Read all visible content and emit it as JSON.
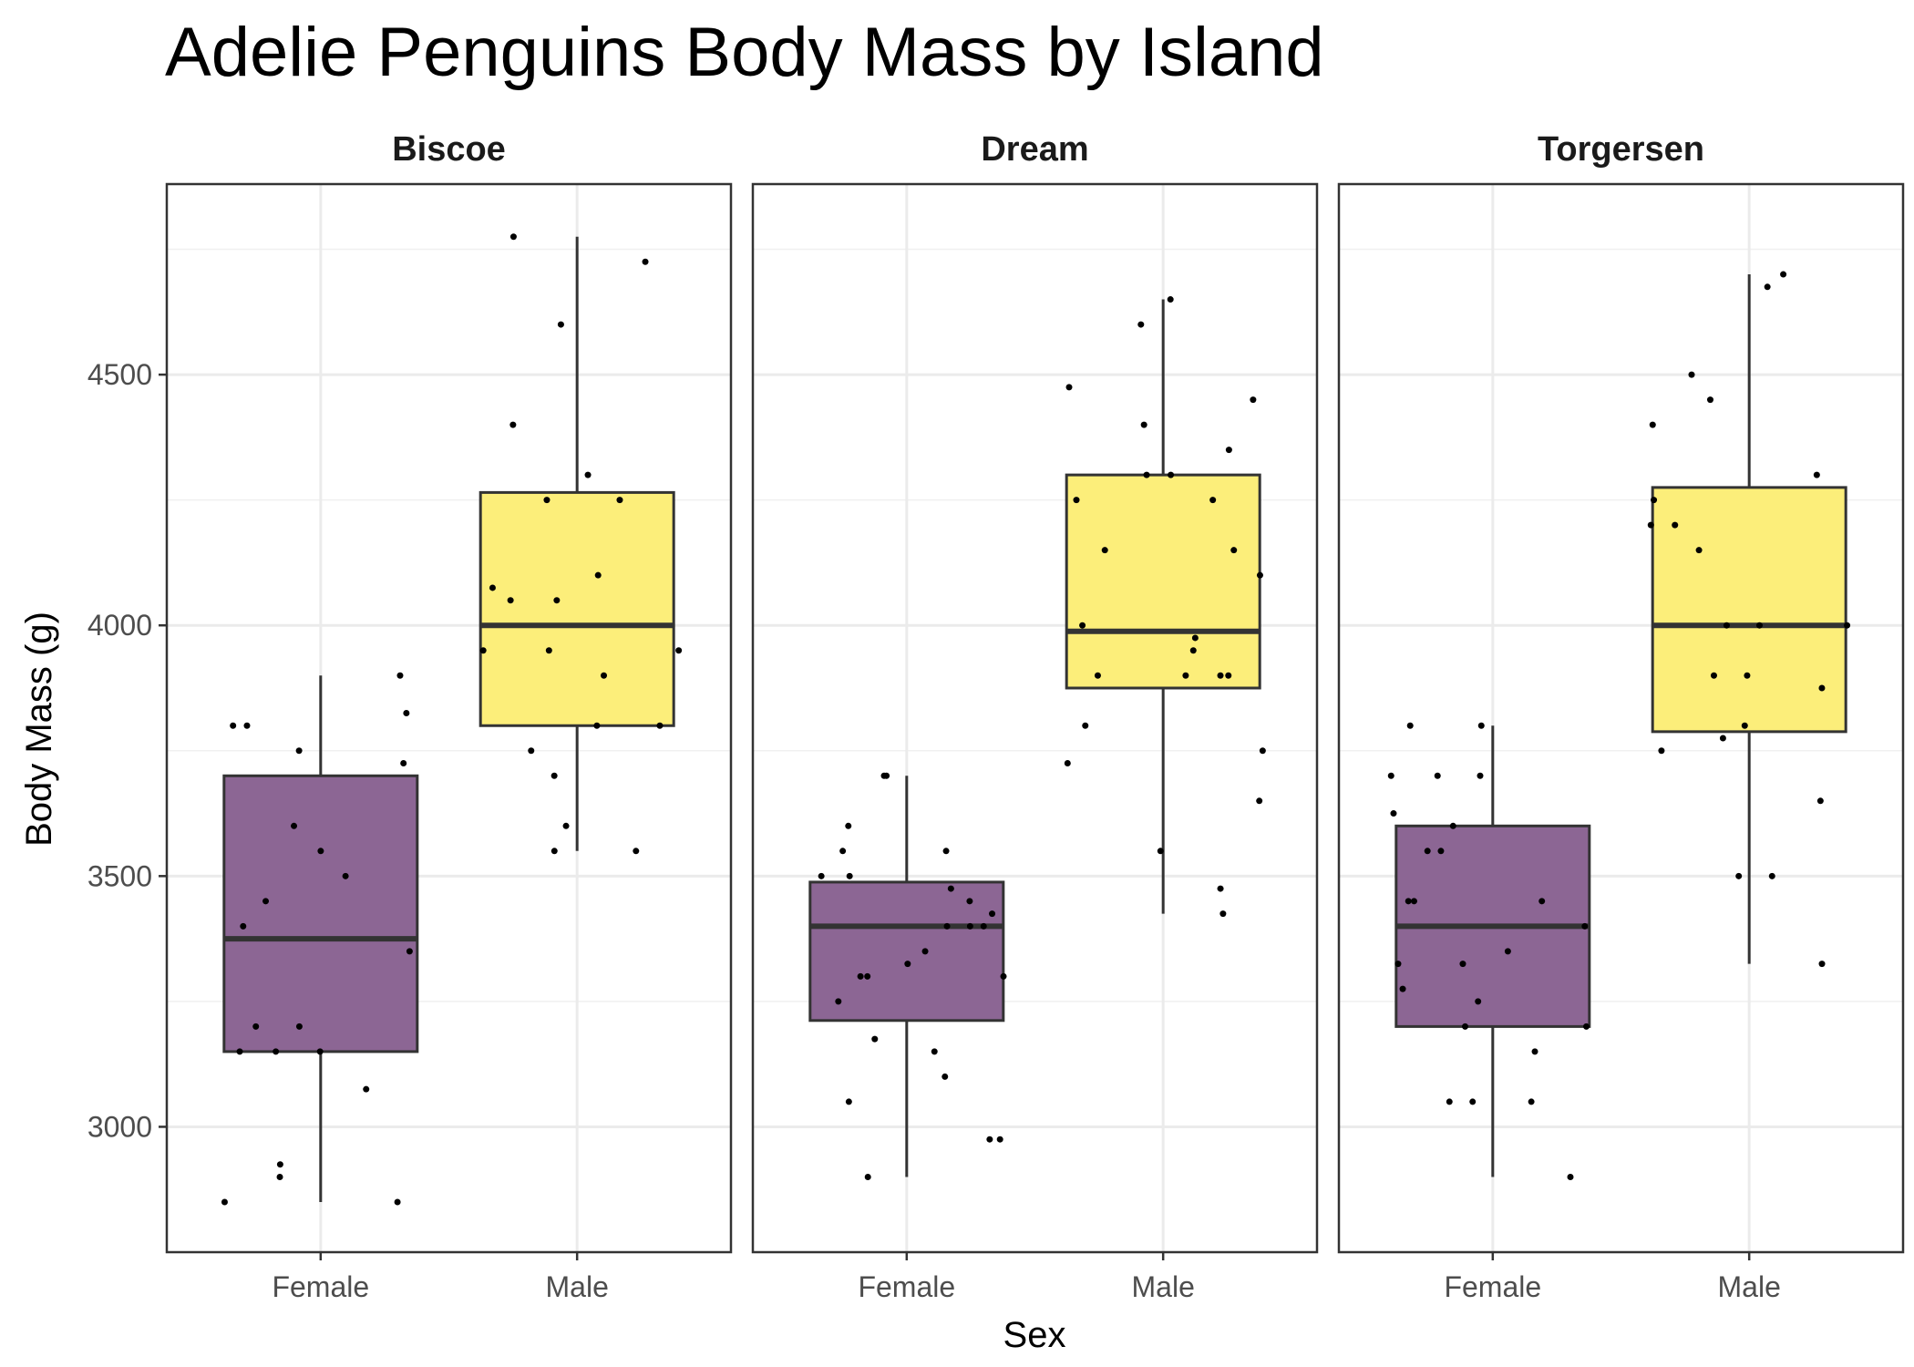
{
  "chart_data": {
    "type": "boxplot",
    "title": "Adelie Penguins Body Mass by Island",
    "xlabel": "Sex",
    "ylabel": "Body Mass (g)",
    "ylim": [
      2750,
      4880
    ],
    "y_ticks": [
      3000,
      3500,
      4000,
      4500
    ],
    "categories": [
      "Female",
      "Male"
    ],
    "fill_colors": {
      "Female": "#8c6694",
      "Male": "#fcee7a"
    },
    "grid": true,
    "facets": [
      {
        "name": "Biscoe",
        "boxes": [
          {
            "category": "Female",
            "whisker_low": 2850,
            "q1": 3150,
            "median": 3375,
            "q3": 3700,
            "whisker_high": 3900
          },
          {
            "category": "Male",
            "whisker_low": 3550,
            "q1": 3800,
            "median": 4000,
            "q3": 4265,
            "whisker_high": 4775
          }
        ],
        "points": {
          "Female": [
            3900,
            3825,
            3800,
            3750,
            3725,
            3800,
            3600,
            3550,
            3500,
            3450,
            3400,
            3350,
            3200,
            3200,
            3150,
            3150,
            3150,
            3075,
            2925,
            2900,
            2850,
            2850
          ],
          "Male": [
            4775,
            4725,
            4600,
            4400,
            4300,
            4250,
            4250,
            4100,
            4075,
            4050,
            4050,
            3950,
            3950,
            3950,
            3900,
            3800,
            3800,
            3750,
            3700,
            3600,
            3550,
            3550
          ]
        }
      },
      {
        "name": "Dream",
        "boxes": [
          {
            "category": "Female",
            "whisker_low": 2900,
            "q1": 3212,
            "median": 3400,
            "q3": 3488,
            "whisker_high": 3700
          },
          {
            "category": "Male",
            "whisker_low": 3425,
            "q1": 3875,
            "median": 3988,
            "q3": 4300,
            "whisker_high": 4650
          }
        ],
        "points": {
          "Female": [
            3700,
            3700,
            3600,
            3550,
            3550,
            3500,
            3500,
            3475,
            3450,
            3425,
            3400,
            3400,
            3400,
            3350,
            3325,
            3300,
            3300,
            3300,
            3250,
            3175,
            3150,
            3100,
            3050,
            2975,
            2975,
            2900
          ],
          "Male": [
            4650,
            4600,
            4475,
            4450,
            4400,
            4350,
            4300,
            4300,
            4250,
            4250,
            4150,
            4150,
            4100,
            4000,
            3975,
            3950,
            3900,
            3900,
            3900,
            3900,
            3800,
            3750,
            3725,
            3650,
            3550,
            3475,
            3425
          ]
        }
      },
      {
        "name": "Torgersen",
        "boxes": [
          {
            "category": "Female",
            "whisker_low": 2900,
            "q1": 3200,
            "median": 3400,
            "q3": 3600,
            "whisker_high": 3800
          },
          {
            "category": "Male",
            "whisker_low": 3325,
            "q1": 3788,
            "median": 4000,
            "q3": 4275,
            "whisker_high": 4700
          }
        ],
        "points": {
          "Female": [
            3800,
            3800,
            3700,
            3700,
            3700,
            3625,
            3600,
            3550,
            3550,
            3450,
            3450,
            3450,
            3400,
            3350,
            3325,
            3325,
            3275,
            3250,
            3200,
            3200,
            3150,
            3050,
            3050,
            3050,
            2900
          ],
          "Male": [
            4700,
            4675,
            4500,
            4450,
            4400,
            4300,
            4250,
            4200,
            4200,
            4150,
            4000,
            4000,
            4000,
            3900,
            3900,
            3875,
            3800,
            3775,
            3750,
            3650,
            3500,
            3500,
            3325
          ]
        }
      }
    ]
  }
}
